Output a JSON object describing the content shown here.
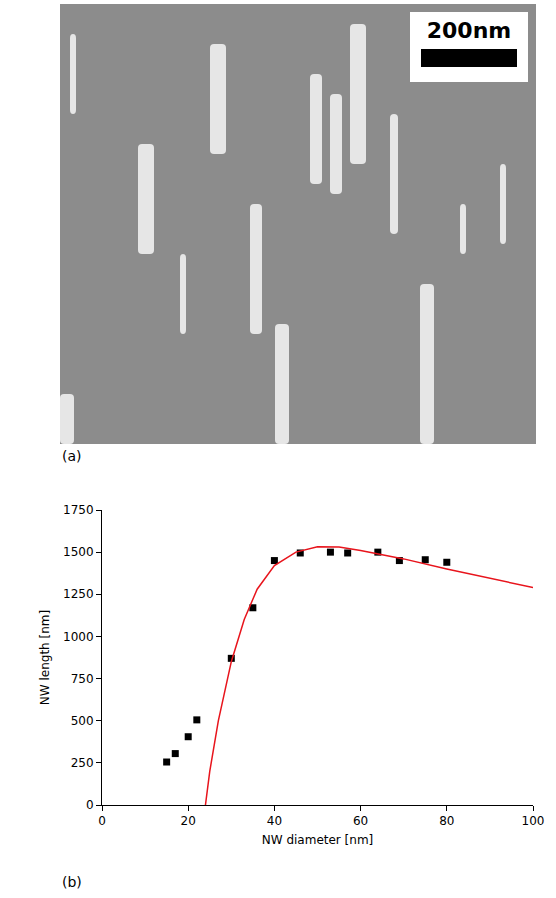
{
  "photo": {
    "label": "(a)",
    "scale_bar": "200nm"
  },
  "chart_data": {
    "type": "scatter",
    "label": "(b)",
    "x_label": "NW diameter [nm]",
    "y_label": "NW length [nm]",
    "xlim": [
      0,
      100
    ],
    "xticks": [
      0,
      20,
      40,
      60,
      80,
      100
    ],
    "ylim": [
      0,
      1750
    ],
    "yticks": [
      0,
      250,
      500,
      750,
      1000,
      1250,
      1500,
      1750
    ],
    "grid": false,
    "series": [
      {
        "type": "scatter",
        "marker": "square",
        "color": "#000000",
        "x": [
          15,
          17,
          20,
          22,
          30,
          35,
          40,
          46,
          53,
          57,
          64,
          69,
          75,
          80
        ],
        "values": [
          255,
          305,
          405,
          505,
          870,
          1170,
          1450,
          1495,
          1500,
          1495,
          1500,
          1450,
          1455,
          1440
        ]
      },
      {
        "type": "line",
        "color": "#e8141c",
        "x": [
          24,
          25,
          27,
          30,
          33,
          36,
          40,
          45,
          50,
          55,
          60,
          70,
          80,
          90,
          100
        ],
        "values": [
          0,
          200,
          500,
          850,
          1100,
          1280,
          1420,
          1500,
          1532,
          1530,
          1510,
          1460,
          1400,
          1345,
          1290
        ]
      }
    ]
  }
}
